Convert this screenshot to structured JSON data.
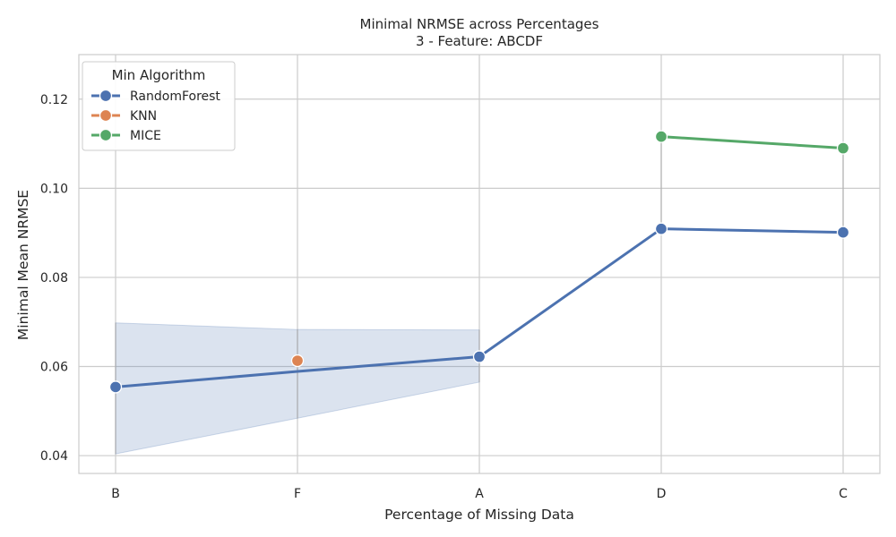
{
  "chart_data": {
    "type": "line",
    "title": "Minimal NRMSE across Percentages",
    "subtitle": "3 - Feature: ABCDF",
    "xlabel": "Percentage of Missing Data",
    "ylabel": "Minimal Mean NRMSE",
    "categories": [
      "B",
      "F",
      "A",
      "D",
      "C"
    ],
    "ylim": [
      0.036,
      0.13
    ],
    "yticks": [
      0.04,
      0.06,
      0.08,
      0.1,
      0.12
    ],
    "ytick_labels": [
      "0.04",
      "0.06",
      "0.08",
      "0.10",
      "0.12"
    ],
    "grid": true,
    "legend": {
      "title": "Min Algorithm",
      "placement": "top-left",
      "entries": [
        "RandomForest",
        "KNN",
        "MICE"
      ]
    },
    "series": [
      {
        "name": "RandomForest",
        "color": "#4c72b0",
        "values": [
          0.0554,
          0.0589,
          0.0622,
          0.0909,
          0.0901
        ],
        "markers": [
          true,
          false,
          true,
          true,
          true
        ],
        "band_low": [
          0.0404,
          0.0484,
          0.0565,
          null,
          null
        ],
        "band_high": [
          0.0698,
          0.0683,
          0.0682,
          null,
          null
        ]
      },
      {
        "name": "KNN",
        "color": "#dd8452",
        "values": [
          null,
          0.0613,
          null,
          null,
          null
        ],
        "markers": [
          false,
          true,
          false,
          false,
          false
        ]
      },
      {
        "name": "MICE",
        "color": "#55a868",
        "values": [
          null,
          null,
          null,
          0.1116,
          0.109
        ],
        "markers": [
          false,
          false,
          false,
          true,
          true
        ]
      }
    ]
  }
}
